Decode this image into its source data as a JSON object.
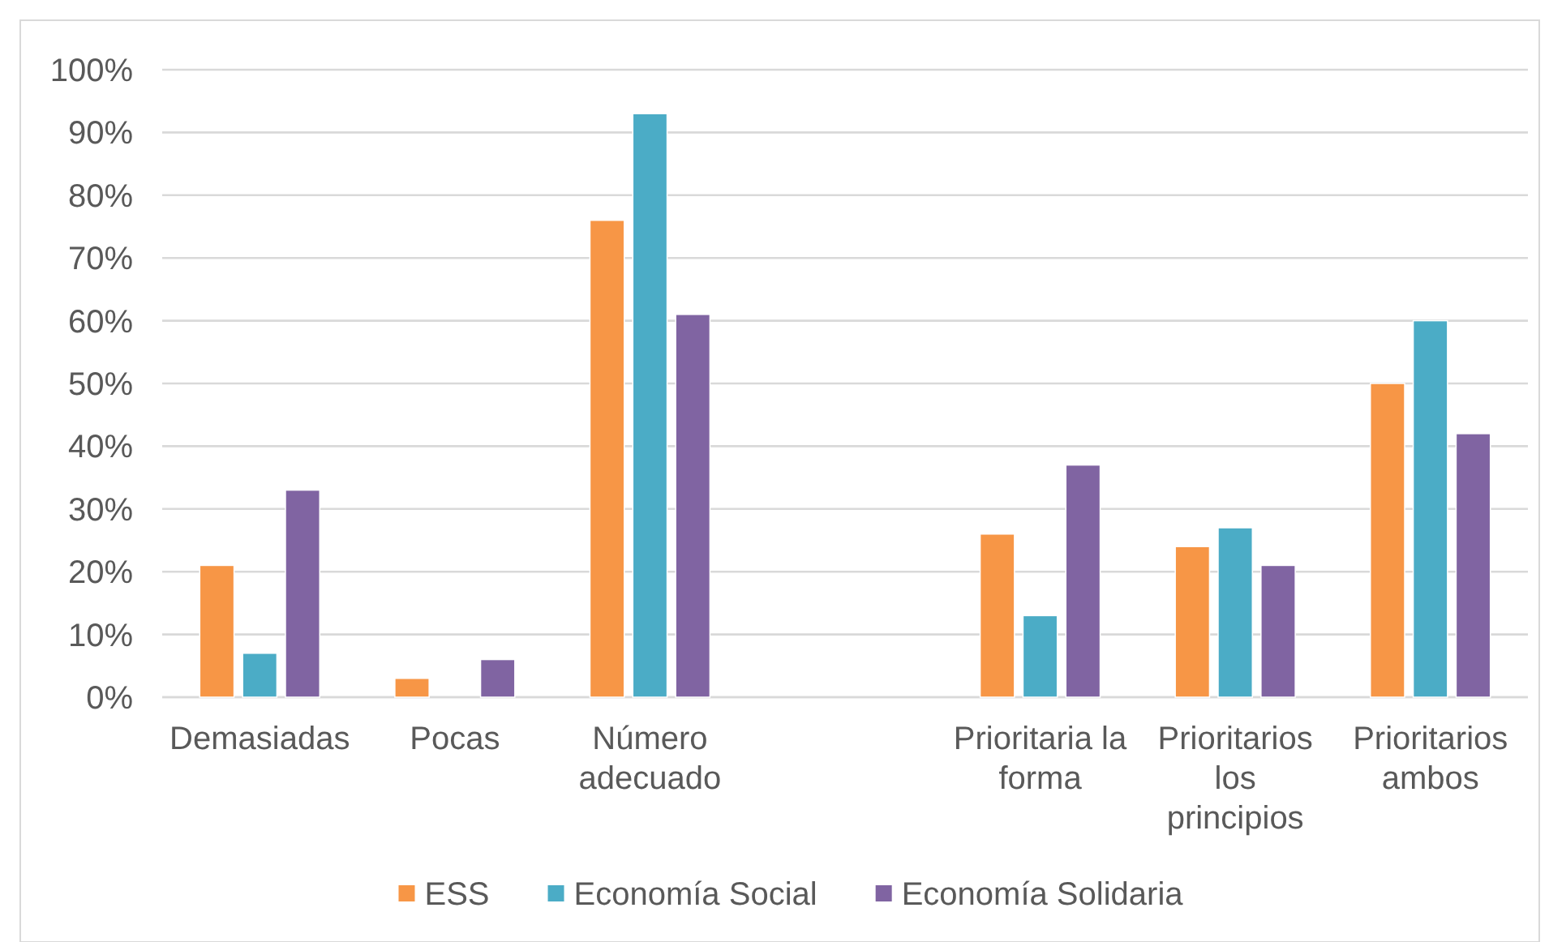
{
  "chart_data": {
    "type": "bar",
    "categories": [
      "Demasiadas",
      "Pocas",
      "Número adecuado",
      null,
      "Prioritaria la forma",
      "Prioritarios los principios",
      "Prioritarios ambos"
    ],
    "series": [
      {
        "name": "ESS",
        "color": "#f79646",
        "values": [
          21,
          3,
          76,
          null,
          26,
          24,
          50
        ]
      },
      {
        "name": "Economía Social",
        "color": "#4bacc6",
        "values": [
          7,
          0,
          93,
          null,
          13,
          27,
          60
        ]
      },
      {
        "name": "Economía Solidaria",
        "color": "#8064a2",
        "values": [
          33,
          6,
          61,
          null,
          37,
          21,
          42
        ]
      }
    ],
    "ylim": [
      0,
      100
    ],
    "yticks": [
      {
        "value": 0,
        "label": "0%"
      },
      {
        "value": 10,
        "label": "10%"
      },
      {
        "value": 20,
        "label": "20%"
      },
      {
        "value": 30,
        "label": "30%"
      },
      {
        "value": 40,
        "label": "40%"
      },
      {
        "value": 50,
        "label": "50%"
      },
      {
        "value": 60,
        "label": "60%"
      },
      {
        "value": 70,
        "label": "70%"
      },
      {
        "value": 80,
        "label": "80%"
      },
      {
        "value": 90,
        "label": "90%"
      },
      {
        "value": 100,
        "label": "100%"
      }
    ],
    "grid": "y",
    "legend": "bottom"
  }
}
